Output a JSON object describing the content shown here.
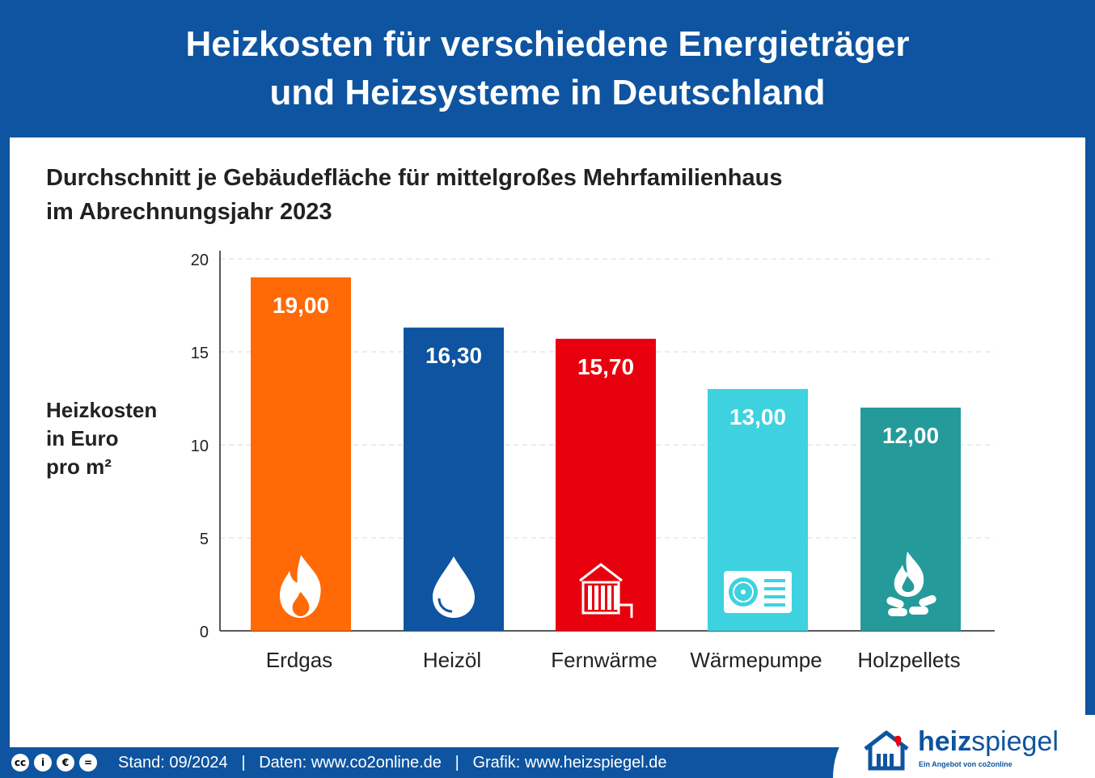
{
  "header": {
    "title_line1": "Heizkosten für verschiedene Energieträger",
    "title_line2": "und Heizsysteme in Deutschland"
  },
  "subtitle": {
    "line1": "Durchschnitt je Gebäudefläche für mittelgroßes Mehrfamilienhaus",
    "line2": "im Abrechnungsjahr 2023"
  },
  "y_axis_label": {
    "line1": "Heizkosten",
    "line2": "in Euro",
    "line3": "pro m²"
  },
  "chart_data": {
    "type": "bar",
    "categories": [
      "Erdgas",
      "Heizöl",
      "Fernwärme",
      "Wärmepumpe",
      "Holzpellets"
    ],
    "values": [
      19.0,
      16.3,
      15.7,
      13.0,
      12.0
    ],
    "value_labels": [
      "19,00",
      "16,30",
      "15,70",
      "13,00",
      "12,00"
    ],
    "bar_colors": [
      "#ff6a06",
      "#0e54a0",
      "#e8000e",
      "#3ed2e0",
      "#259a9a"
    ],
    "bar_icons": [
      "flame-icon",
      "oil-drop-icon",
      "radiator-icon",
      "heat-pump-icon",
      "wood-fire-icon"
    ],
    "yticks": [
      0,
      5,
      10,
      15,
      20
    ],
    "ylim": [
      0,
      20
    ],
    "grid": true,
    "title": "Durchschnitt je Gebäudefläche für mittelgroßes Mehrfamilienhaus im Abrechnungsjahr 2023",
    "xlabel": "",
    "ylabel": "Heizkosten in Euro pro m²"
  },
  "footer": {
    "license_icons": [
      "cc",
      "i",
      "€",
      "="
    ],
    "text": "Stand: 09/2024   |   Daten: www.co2online.de   |   Grafik: www.heizspiegel.de"
  },
  "logo": {
    "word_bold": "heiz",
    "word_regular": "spiegel",
    "tagline": "Ein Angebot von co2online"
  }
}
